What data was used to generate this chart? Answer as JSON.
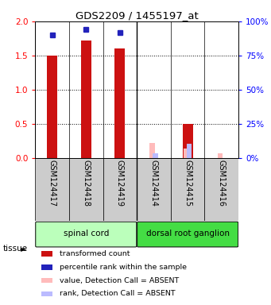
{
  "title": "GDS2209 / 1455197_at",
  "samples": [
    "GSM124417",
    "GSM124418",
    "GSM124419",
    "GSM124414",
    "GSM124415",
    "GSM124416"
  ],
  "red_values": [
    1.5,
    1.72,
    1.6,
    0.0,
    0.5,
    0.0
  ],
  "blue_markers": [
    1.8,
    1.88,
    1.83,
    0.0,
    0.0,
    0.0
  ],
  "pink_values": [
    0.0,
    0.0,
    0.0,
    0.22,
    0.13,
    0.07
  ],
  "lavender_values": [
    0.0,
    0.0,
    0.0,
    0.07,
    0.2,
    0.0
  ],
  "tissue_groups": [
    {
      "label": "spinal cord",
      "cols": [
        0,
        1,
        2
      ],
      "color": "#bbffbb"
    },
    {
      "label": "dorsal root ganglion",
      "cols": [
        3,
        4,
        5
      ],
      "color": "#44dd44"
    }
  ],
  "ylim_left": [
    0,
    2
  ],
  "ylim_right": [
    0,
    100
  ],
  "yticks_left": [
    0,
    0.5,
    1.0,
    1.5,
    2.0
  ],
  "yticks_right": [
    0,
    25,
    50,
    75,
    100
  ],
  "bar_color_red": "#cc1111",
  "bar_color_pink": "#ffbbbb",
  "bar_color_blue": "#2222bb",
  "bar_color_lavender": "#bbbbff",
  "bar_width": 0.3,
  "legend_items": [
    {
      "color": "#cc1111",
      "label": "transformed count"
    },
    {
      "color": "#2222bb",
      "label": "percentile rank within the sample"
    },
    {
      "color": "#ffbbbb",
      "label": "value, Detection Call = ABSENT"
    },
    {
      "color": "#bbbbff",
      "label": "rank, Detection Call = ABSENT"
    }
  ]
}
